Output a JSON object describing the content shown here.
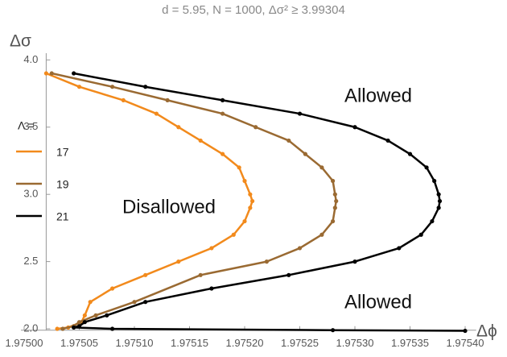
{
  "chart_data": {
    "type": "line",
    "title": "d = 5.95,    N = 1000,    Δσ² ≥ 3.99304",
    "x_label": "Δϕ",
    "y_label": "Δσ",
    "legend_title": "Λ =",
    "annotations": [
      "Allowed",
      "Disallowed",
      "Allowed"
    ],
    "xlim": [
      1.97502,
      1.97541
    ],
    "ylim": [
      1.99,
      4.05
    ],
    "xticks": [
      {
        "value": 1.975,
        "label": "1.97500"
      },
      {
        "value": 1.97505,
        "label": "1.97505"
      },
      {
        "value": 1.9751,
        "label": "1.97510"
      },
      {
        "value": 1.97515,
        "label": "1.97515"
      },
      {
        "value": 1.9752,
        "label": "1.97520"
      },
      {
        "value": 1.97525,
        "label": "1.97525"
      },
      {
        "value": 1.9753,
        "label": "1.97530"
      },
      {
        "value": 1.97535,
        "label": "1.97535"
      },
      {
        "value": 1.9754,
        "label": "1.97540"
      }
    ],
    "yticks": [
      {
        "value": 2,
        "label": "2.0"
      },
      {
        "value": 2.5,
        "label": "2.5"
      },
      {
        "value": 3,
        "label": "3.0"
      },
      {
        "value": 3.5,
        "label": "3.5"
      },
      {
        "value": 4,
        "label": "4.0"
      }
    ],
    "series": [
      {
        "name": "17",
        "color": "#f28a1c",
        "x": [
          1.97502,
          1.97505,
          1.97509,
          1.97512,
          1.97514,
          1.97516,
          1.97518,
          1.975195,
          1.9752,
          1.975205,
          1.975207,
          1.975205,
          1.9752,
          1.97519,
          1.97517,
          1.97514,
          1.97511,
          1.97508,
          1.97506,
          1.975055,
          1.975052,
          1.97504,
          1.97503
        ],
        "y": [
          3.9,
          3.8,
          3.7,
          3.6,
          3.5,
          3.4,
          3.3,
          3.2,
          3.1,
          3.0,
          2.95,
          2.9,
          2.8,
          2.7,
          2.6,
          2.5,
          2.4,
          2.3,
          2.2,
          2.1,
          2.05,
          2.01,
          2.0
        ]
      },
      {
        "name": "19",
        "color": "#9a6a32",
        "x": [
          1.975025,
          1.97508,
          1.97513,
          1.97518,
          1.97521,
          1.97524,
          1.975255,
          1.97527,
          1.97528,
          1.975282,
          1.975283,
          1.975282,
          1.97528,
          1.97527,
          1.97525,
          1.97522,
          1.97516,
          1.9751,
          1.975065,
          1.97505,
          1.975045,
          1.975035
        ],
        "y": [
          3.9,
          3.8,
          3.7,
          3.6,
          3.5,
          3.4,
          3.3,
          3.2,
          3.1,
          3.0,
          2.95,
          2.9,
          2.8,
          2.7,
          2.6,
          2.5,
          2.4,
          2.2,
          2.1,
          2.05,
          2.02,
          2.0
        ]
      },
      {
        "name": "21",
        "color": "#000000",
        "x": [
          1.975045,
          1.97511,
          1.97518,
          1.97525,
          1.9753,
          1.97533,
          1.97535,
          1.975365,
          1.975372,
          1.975376,
          1.975377,
          1.975376,
          1.97537,
          1.97536,
          1.97534,
          1.9753,
          1.97524,
          1.97517,
          1.97511,
          1.975075,
          1.975055,
          1.97505,
          1.975045,
          1.97508,
          1.97528,
          1.9754
        ],
        "y": [
          3.9,
          3.8,
          3.7,
          3.6,
          3.5,
          3.4,
          3.3,
          3.2,
          3.1,
          3.0,
          2.95,
          2.9,
          2.8,
          2.7,
          2.6,
          2.5,
          2.4,
          2.3,
          2.2,
          2.1,
          2.05,
          2.02,
          2.01,
          2.0,
          1.99,
          1.985
        ]
      }
    ]
  }
}
